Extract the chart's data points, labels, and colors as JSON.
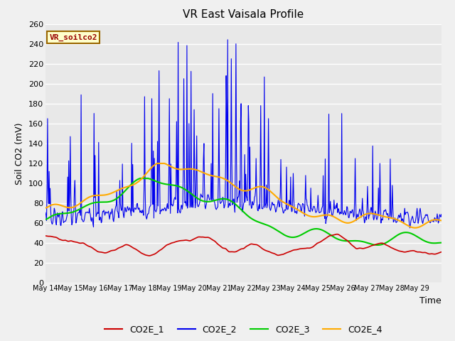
{
  "title": "VR East Vaisala Profile",
  "ylabel": "Soil CO2 (mV)",
  "xlabel": "Time",
  "annotation": "VR_soilco2",
  "ylim": [
    0,
    260
  ],
  "bg_color": "#e8e8e8",
  "fig_color": "#f0f0f0",
  "legend": [
    "CO2E_1",
    "CO2E_2",
    "CO2E_3",
    "CO2E_4"
  ],
  "colors": [
    "#cc0000",
    "#0000ee",
    "#00cc00",
    "#ffaa00"
  ],
  "x_tick_labels": [
    "May 14",
    "May 15",
    "May 16",
    "May 17",
    "May 18",
    "May 19",
    "May 20",
    "May 21",
    "May 22",
    "May 23",
    "May 24",
    "May 25",
    "May 26",
    "May 27",
    "May 28",
    "May 29"
  ],
  "yticks": [
    0,
    20,
    40,
    60,
    80,
    100,
    120,
    140,
    160,
    180,
    200,
    220,
    240,
    260
  ]
}
